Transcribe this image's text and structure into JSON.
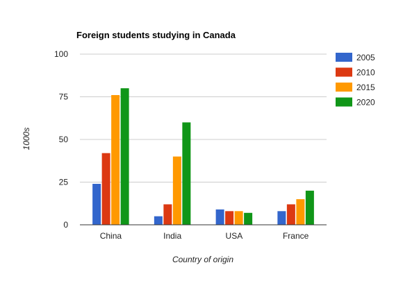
{
  "chart_data": {
    "type": "bar",
    "title": "Foreign students studying in Canada",
    "xlabel": "Country of origin",
    "ylabel": "1000s",
    "categories": [
      "China",
      "India",
      "USA",
      "France"
    ],
    "series": [
      {
        "name": "2005",
        "color": "#3366cc",
        "values": [
          24,
          5,
          9,
          8
        ]
      },
      {
        "name": "2010",
        "color": "#dc3912",
        "values": [
          42,
          12,
          8,
          12
        ]
      },
      {
        "name": "2015",
        "color": "#ff9900",
        "values": [
          76,
          40,
          8,
          15
        ]
      },
      {
        "name": "2020",
        "color": "#109618",
        "values": [
          80,
          60,
          7,
          20
        ]
      }
    ],
    "ylim": [
      0,
      100
    ],
    "yticks": [
      0,
      25,
      50,
      75,
      100
    ],
    "grid": true,
    "legend": "right"
  }
}
